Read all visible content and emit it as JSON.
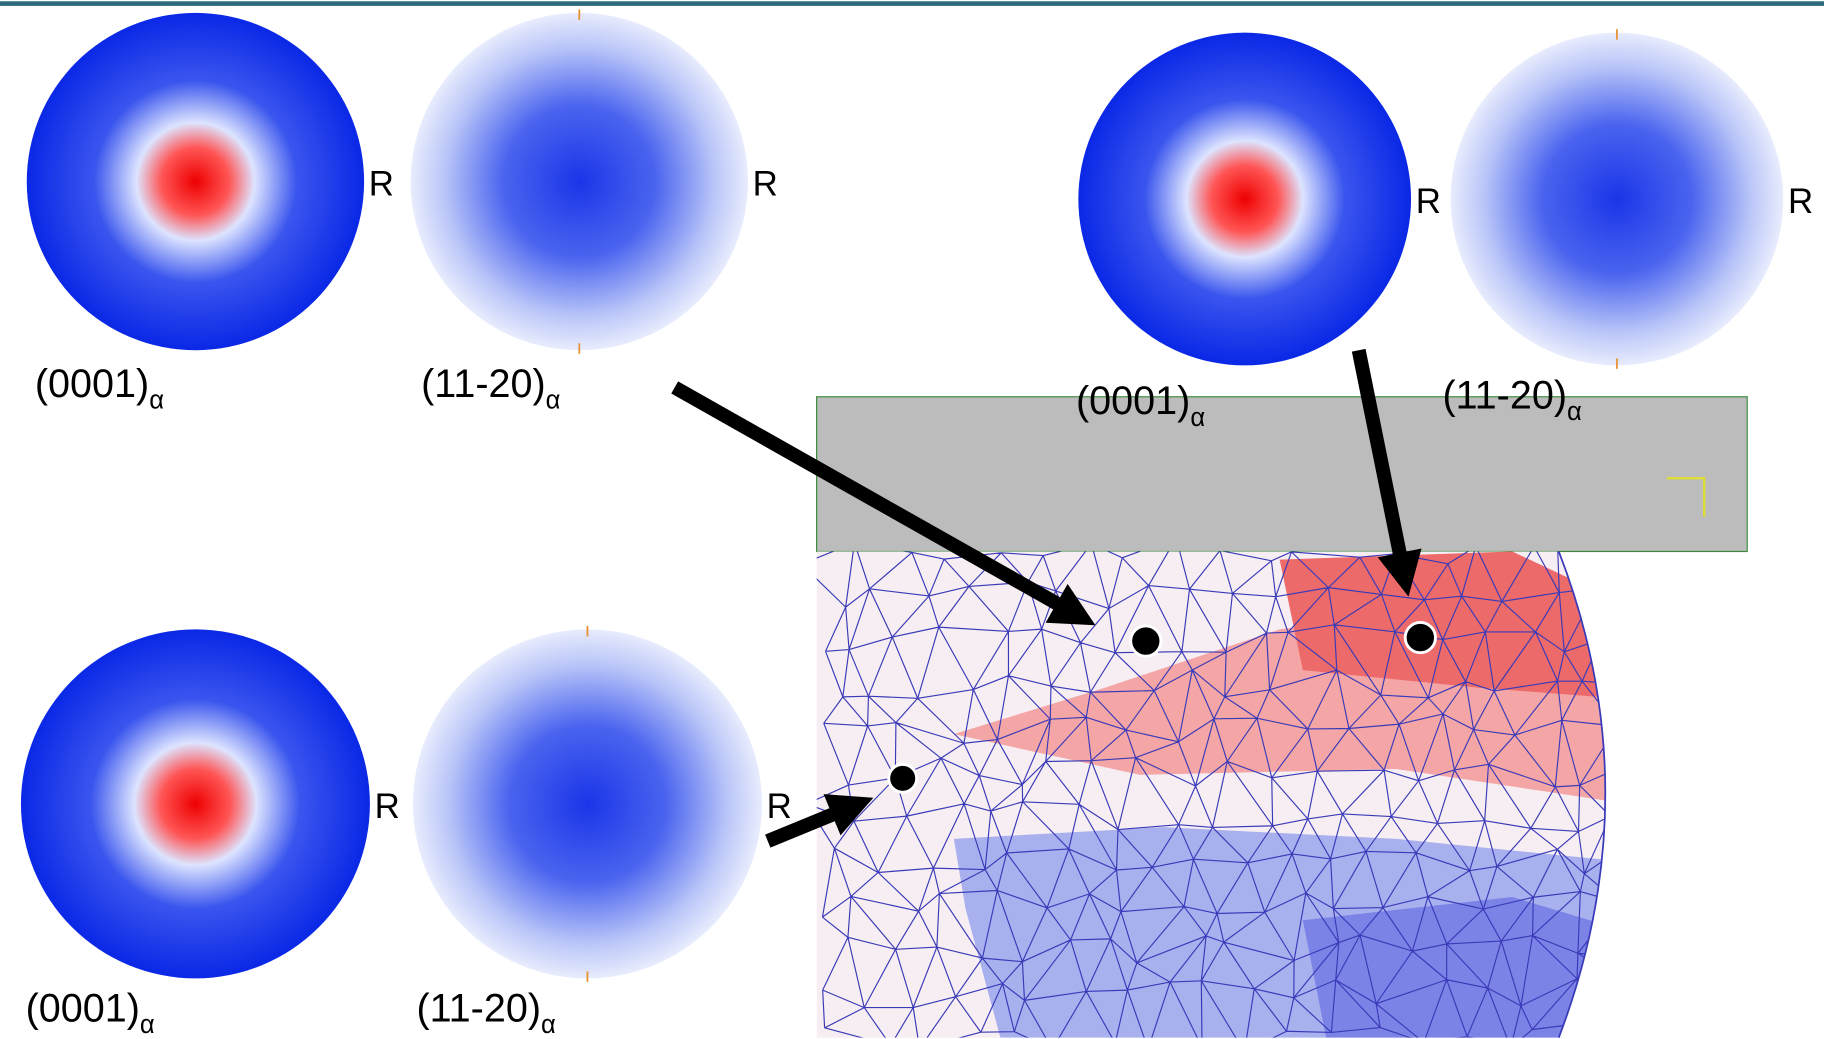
{
  "figures": [
    {
      "poles": [
        {
          "label": "(0001)",
          "subscript": "α",
          "direction": "R"
        },
        {
          "label": "(11-20)",
          "subscript": "α",
          "direction": "R"
        }
      ]
    },
    {
      "poles": [
        {
          "label": "(0001)",
          "subscript": "α",
          "direction": "R"
        },
        {
          "label": "(11-20)",
          "subscript": "α",
          "direction": "R"
        }
      ]
    },
    {
      "poles": [
        {
          "label": "(0001)",
          "subscript": "α",
          "direction": "R"
        },
        {
          "label": "(11-20)",
          "subscript": "α",
          "direction": "R"
        }
      ]
    }
  ]
}
